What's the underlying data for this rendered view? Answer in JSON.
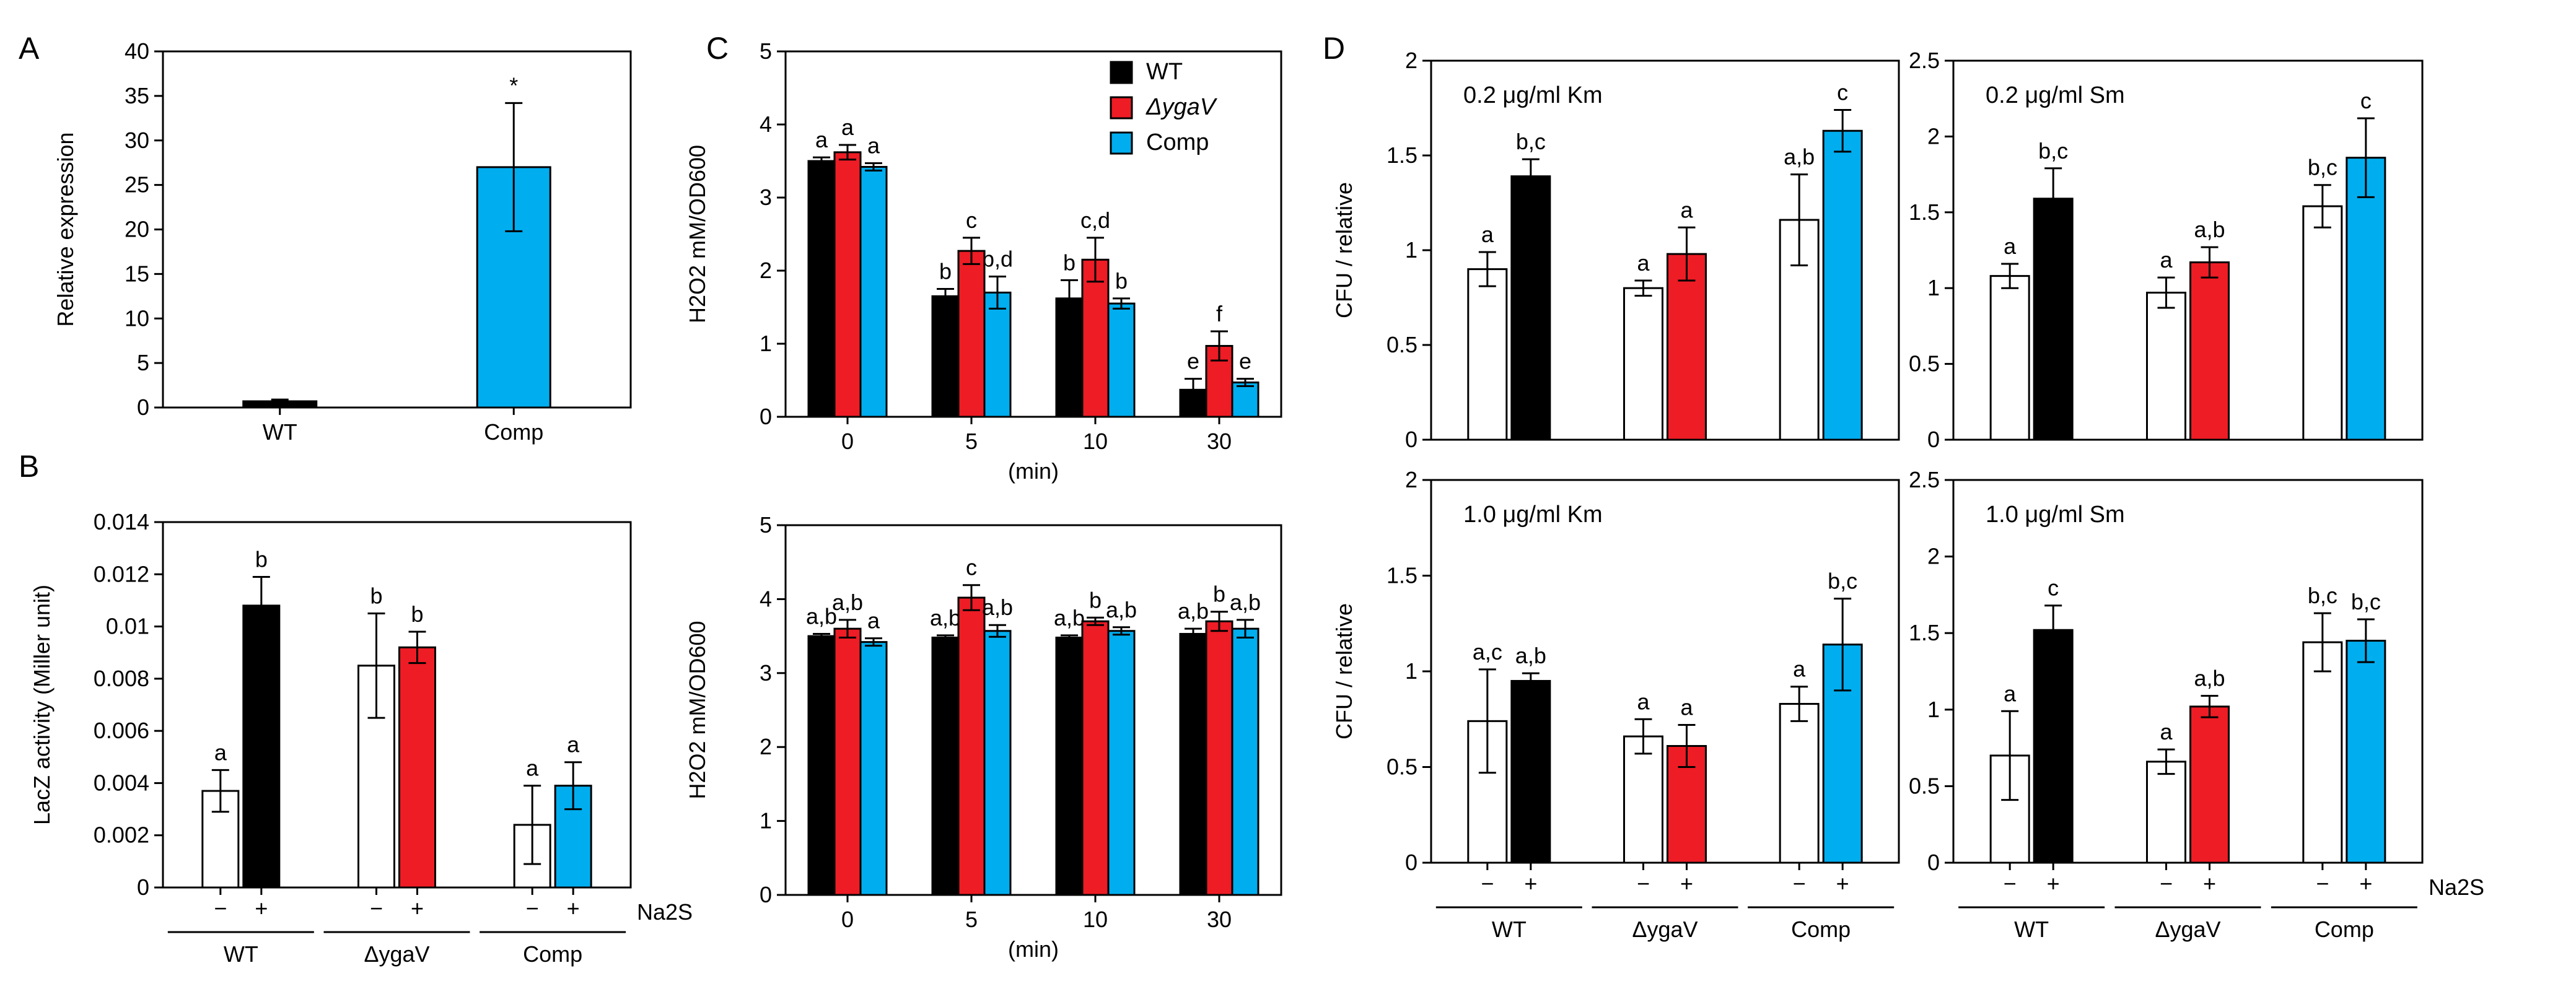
{
  "colors": {
    "wt": "#000000",
    "mutant": "#ee1c25",
    "comp": "#00aeef",
    "open": "#ffffff",
    "stroke": "#000000"
  },
  "sign_minus": "−",
  "sign_plus": "+",
  "na2s_label": "Na₂S",
  "chart_data": [
    {
      "id": "A",
      "panel_letter": "A",
      "type": "bar",
      "title": "",
      "xlabel": "",
      "ylabel": "Relative expression",
      "ylim": [
        0,
        40
      ],
      "yticks": [
        "0",
        "5",
        "10",
        "15",
        "20",
        "25",
        "30",
        "35",
        "40"
      ],
      "categories": [
        "WT",
        "Comp"
      ],
      "values": [
        0.7,
        27.0
      ],
      "errors": [
        0.2,
        7.2
      ],
      "bar_colors": [
        "wt",
        "comp"
      ],
      "labels": [
        "",
        "*"
      ]
    },
    {
      "id": "B",
      "panel_letter": "B",
      "type": "bar",
      "title": "",
      "xlabel": "",
      "ylabel": "LacZ activity (Miller unit)",
      "ylim": [
        0,
        0.014
      ],
      "yticks": [
        "0",
        "0.002",
        "0.004",
        "0.006",
        "0.008",
        "0.01",
        "0.012",
        "0.014"
      ],
      "groups": [
        "WT",
        "ΔygaV",
        "Comp"
      ],
      "treatment": [
        "−",
        "+"
      ],
      "values": [
        [
          0.0037,
          0.0108
        ],
        [
          0.0085,
          0.0092
        ],
        [
          0.0024,
          0.0039
        ]
      ],
      "errors": [
        [
          0.0008,
          0.0011
        ],
        [
          0.002,
          0.0006
        ],
        [
          0.0015,
          0.0009
        ]
      ],
      "labels": [
        [
          "a",
          "b"
        ],
        [
          "b",
          "b"
        ],
        [
          "a",
          "a"
        ]
      ]
    },
    {
      "id": "C-top",
      "panel_letter": "C",
      "type": "bar",
      "title": "",
      "xlabel": "(min)",
      "ylabel": "H₂O₂ mM/OD600",
      "ylim": [
        0,
        5
      ],
      "yticks": [
        "0",
        "1",
        "2",
        "3",
        "4",
        "5"
      ],
      "categories": [
        "0",
        "5",
        "10",
        "30"
      ],
      "legend": [
        "WT",
        "ΔygaV",
        "Comp"
      ],
      "series": [
        {
          "name": "WT",
          "values": [
            3.5,
            1.65,
            1.62,
            0.37
          ],
          "errors": [
            0.05,
            0.1,
            0.25,
            0.15
          ],
          "labels": [
            "a",
            "b",
            "b",
            "e"
          ]
        },
        {
          "name": "ΔygaV",
          "values": [
            3.62,
            2.27,
            2.15,
            0.97
          ],
          "errors": [
            0.1,
            0.18,
            0.3,
            0.2
          ],
          "labels": [
            "a",
            "c",
            "c,d",
            "f"
          ]
        },
        {
          "name": "Comp",
          "values": [
            3.42,
            1.7,
            1.55,
            0.47
          ],
          "errors": [
            0.05,
            0.22,
            0.07,
            0.05
          ],
          "labels": [
            "a",
            "b,d",
            "b",
            "e"
          ]
        }
      ]
    },
    {
      "id": "C-bottom",
      "panel_letter": "",
      "type": "bar",
      "title": "",
      "xlabel": "(min)",
      "ylabel": "H₂O₂ mM/OD600",
      "ylim": [
        0,
        5
      ],
      "yticks": [
        "0",
        "1",
        "2",
        "3",
        "4",
        "5"
      ],
      "categories": [
        "0",
        "5",
        "10",
        "30"
      ],
      "series": [
        {
          "name": "WT",
          "values": [
            3.5,
            3.48,
            3.48,
            3.53
          ],
          "errors": [
            0.03,
            0.03,
            0.03,
            0.07
          ],
          "labels": [
            "a,b",
            "a,b",
            "a,b",
            "a,b"
          ]
        },
        {
          "name": "ΔygaV",
          "values": [
            3.6,
            4.02,
            3.7,
            3.7
          ],
          "errors": [
            0.12,
            0.17,
            0.05,
            0.13
          ],
          "labels": [
            "a,b",
            "c",
            "b",
            "b"
          ]
        },
        {
          "name": "Comp",
          "values": [
            3.42,
            3.57,
            3.57,
            3.6
          ],
          "errors": [
            0.05,
            0.08,
            0.05,
            0.12
          ],
          "labels": [
            "a",
            "a,b",
            "a,b",
            "a,b"
          ]
        }
      ]
    },
    {
      "id": "D-km-0.2",
      "panel_letter": "D",
      "type": "bar",
      "title": "0.2 μg/ml Km",
      "xlabel": "",
      "ylabel": "CFU / relative",
      "ylim": [
        0,
        2
      ],
      "yticks": [
        "0",
        "0.5",
        "1",
        "1.5",
        "2"
      ],
      "groups": [
        "WT",
        "ΔygaV",
        "Comp"
      ],
      "treatment": [
        "−",
        "+"
      ],
      "values": [
        [
          0.9,
          1.39
        ],
        [
          0.8,
          0.98
        ],
        [
          1.16,
          1.63
        ]
      ],
      "errors": [
        [
          0.09,
          0.09
        ],
        [
          0.04,
          0.14
        ],
        [
          0.24,
          0.11
        ]
      ],
      "labels": [
        [
          "a",
          "b,c"
        ],
        [
          "a",
          "a"
        ],
        [
          "a,b",
          "c"
        ]
      ]
    },
    {
      "id": "D-sm-0.2",
      "panel_letter": "",
      "type": "bar",
      "title": "0.2 μg/ml Sm",
      "xlabel": "",
      "ylabel": "",
      "ylim": [
        0,
        2.5
      ],
      "yticks": [
        "0",
        "0.5",
        "1",
        "1.5",
        "2",
        "2.5"
      ],
      "groups": [
        "WT",
        "ΔygaV",
        "Comp"
      ],
      "treatment": [
        "−",
        "+"
      ],
      "values": [
        [
          1.08,
          1.59
        ],
        [
          0.97,
          1.17
        ],
        [
          1.54,
          1.86
        ]
      ],
      "errors": [
        [
          0.08,
          0.2
        ],
        [
          0.1,
          0.1
        ],
        [
          0.14,
          0.26
        ]
      ],
      "labels": [
        [
          "a",
          "b,c"
        ],
        [
          "a",
          "a,b"
        ],
        [
          "b,c",
          "c"
        ]
      ]
    },
    {
      "id": "D-km-1.0",
      "panel_letter": "",
      "type": "bar",
      "title": "1.0 μg/ml Km",
      "xlabel": "",
      "ylabel": "CFU / relative",
      "ylim": [
        0,
        2
      ],
      "yticks": [
        "0",
        "0.5",
        "1",
        "1.5",
        "2"
      ],
      "groups": [
        "WT",
        "ΔygaV",
        "Comp"
      ],
      "treatment": [
        "−",
        "+"
      ],
      "values": [
        [
          0.74,
          0.95
        ],
        [
          0.66,
          0.61
        ],
        [
          0.83,
          1.14
        ]
      ],
      "errors": [
        [
          0.27,
          0.04
        ],
        [
          0.09,
          0.11
        ],
        [
          0.09,
          0.24
        ]
      ],
      "labels": [
        [
          "a,c",
          "a,b"
        ],
        [
          "a",
          "a"
        ],
        [
          "a",
          "b,c"
        ]
      ]
    },
    {
      "id": "D-sm-1.0",
      "panel_letter": "",
      "type": "bar",
      "title": "1.0 μg/ml Sm",
      "xlabel": "",
      "ylabel": "",
      "ylim": [
        0,
        2.5
      ],
      "yticks": [
        "0",
        "0.5",
        "1",
        "1.5",
        "2",
        "2.5"
      ],
      "groups": [
        "WT",
        "ΔygaV",
        "Comp"
      ],
      "treatment": [
        "−",
        "+"
      ],
      "values": [
        [
          0.7,
          1.52
        ],
        [
          0.66,
          1.02
        ],
        [
          1.44,
          1.45
        ]
      ],
      "errors": [
        [
          0.29,
          0.16
        ],
        [
          0.08,
          0.07
        ],
        [
          0.19,
          0.14
        ]
      ],
      "labels": [
        [
          "a",
          "c"
        ],
        [
          "a",
          "a,b"
        ],
        [
          "b,c",
          "b,c"
        ]
      ]
    }
  ]
}
